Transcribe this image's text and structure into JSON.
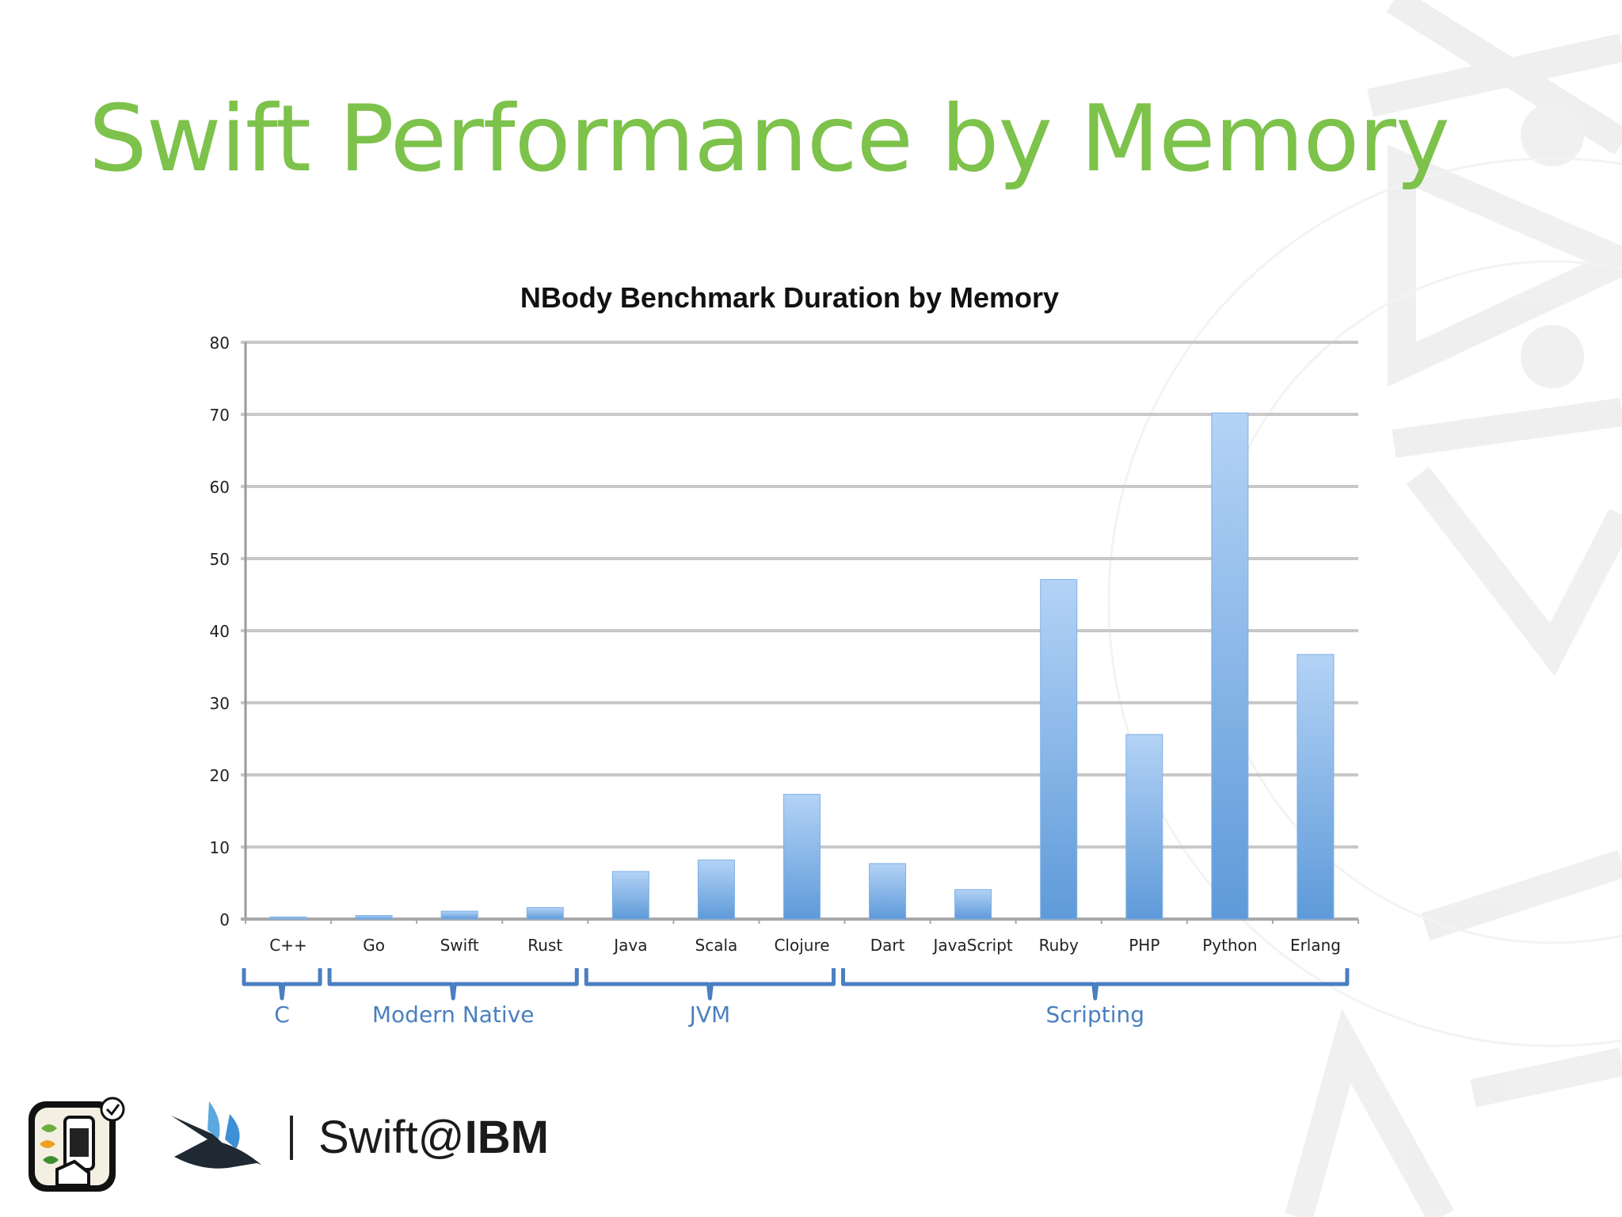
{
  "slide": {
    "title": "Swift Performance by Memory"
  },
  "footer": {
    "brand_prefix": "Swift@",
    "brand_suffix": "IBM",
    "app_icon": "kitura-app-icon",
    "swift_logo": "swift-bird-logo"
  },
  "colors": {
    "title": "#7dc24b",
    "bar_top": "#b4d3f6",
    "bar_bottom": "#5e9ad9",
    "grid": "#c8c8c8",
    "group_label": "#4a7fc0"
  },
  "chart_data": {
    "type": "bar",
    "title": "NBody Benchmark Duration by Memory",
    "xlabel": "",
    "ylabel": "",
    "ylim": [
      0,
      80
    ],
    "yticks": [
      "0",
      "10",
      "20",
      "30",
      "40",
      "50",
      "60",
      "70",
      "80"
    ],
    "grid": true,
    "categories": [
      "C++",
      "Go",
      "Swift",
      "Rust",
      "Java",
      "Scala",
      "Clojure",
      "Dart",
      "JavaScript",
      "Ruby",
      "PHP",
      "Python",
      "Erlang"
    ],
    "values": [
      0.3,
      0.5,
      1.1,
      1.6,
      6.6,
      8.2,
      17.3,
      7.7,
      4.1,
      47.1,
      25.6,
      70.2,
      36.7
    ],
    "groups": [
      {
        "label": "C",
        "categories": [
          "C++"
        ]
      },
      {
        "label": "Modern Native",
        "categories": [
          "Go",
          "Swift",
          "Rust"
        ]
      },
      {
        "label": "JVM",
        "categories": [
          "Java",
          "Scala",
          "Clojure"
        ]
      },
      {
        "label": "Scripting",
        "categories": [
          "Dart",
          "JavaScript",
          "Ruby",
          "PHP",
          "Python",
          "Erlang"
        ]
      }
    ]
  }
}
